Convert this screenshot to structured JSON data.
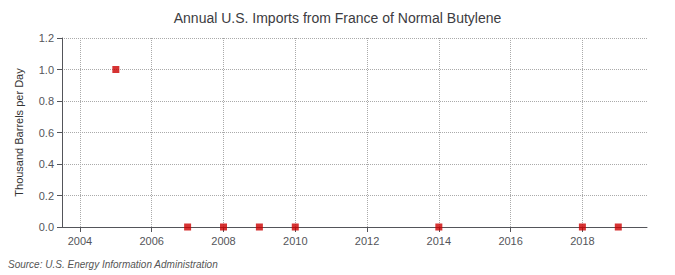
{
  "chart_data": {
    "type": "scatter",
    "title": "Annual U.S. Imports from France of Normal Butylene",
    "ylabel": "Thousand Barrels per Day",
    "annotations": [
      "Source: U.S. Energy Information Administration"
    ],
    "x": [
      2005,
      2007,
      2008,
      2009,
      2010,
      2014,
      2018,
      2019
    ],
    "values": [
      1.0,
      0.0,
      0.0,
      0.0,
      0.0,
      0.0,
      0.0,
      0.0
    ],
    "color": "#cc0000",
    "marker": "square",
    "xlim": [
      2003.5,
      2019.8
    ],
    "xticks": [
      2004,
      2006,
      2008,
      2010,
      2012,
      2014,
      2016,
      2018
    ],
    "ylim": [
      0.0,
      1.2
    ],
    "yticks": [
      {
        "value": 0.0,
        "label": "0.0"
      },
      0.2,
      0.4,
      0.6,
      0.8,
      {
        "value": 1.0,
        "label": "1.0"
      },
      1.2
    ],
    "grid": true
  }
}
